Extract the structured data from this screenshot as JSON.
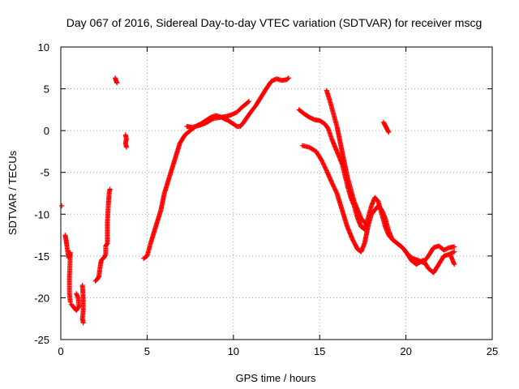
{
  "chart_data": {
    "type": "scatter",
    "title": "Day 067 of 2016, Sidereal Day-to-day VTEC variation (SDTVAR) for receiver mscg",
    "xlabel": "GPS time / hours",
    "ylabel": "SDTVAR / TECUs",
    "xlim": [
      0,
      25
    ],
    "ylim": [
      -25,
      10
    ],
    "xticks": [
      0,
      5,
      10,
      15,
      20,
      25
    ],
    "yticks": [
      -25,
      -20,
      -15,
      -10,
      -5,
      0,
      5,
      10
    ],
    "grid": true,
    "marker": "+",
    "series": [
      {
        "name": "SDTVAR",
        "color": "#ff0000",
        "segments": [
          [
            [
              0.05,
              -9.0
            ]
          ],
          [
            [
              0.25,
              -12.5
            ],
            [
              0.3,
              -13.0
            ],
            [
              0.35,
              -13.8
            ],
            [
              0.4,
              -14.5
            ],
            [
              0.45,
              -15.2
            ],
            [
              0.5,
              -15.0
            ],
            [
              0.55,
              -14.6
            ],
            [
              0.5,
              -17.5
            ],
            [
              0.5,
              -19.5
            ],
            [
              0.55,
              -20.5
            ]
          ],
          [
            [
              0.6,
              -20.8
            ],
            [
              0.7,
              -21.0
            ],
            [
              0.8,
              -21.3
            ],
            [
              0.9,
              -21.5
            ],
            [
              1.0,
              -21.2
            ],
            [
              1.05,
              -21.0
            ],
            [
              1.0,
              -20.0
            ],
            [
              0.9,
              -19.5
            ]
          ],
          [
            [
              1.25,
              -18.5
            ],
            [
              1.3,
              -20.0
            ],
            [
              1.3,
              -21.5
            ],
            [
              1.25,
              -22.5
            ],
            [
              1.3,
              -23.0
            ]
          ],
          [
            [
              2.0,
              -18.0
            ],
            [
              2.1,
              -17.8
            ],
            [
              2.2,
              -17.5
            ],
            [
              2.3,
              -16.0
            ],
            [
              2.35,
              -15.5
            ],
            [
              2.5,
              -15.2
            ],
            [
              2.6,
              -14.8
            ],
            [
              2.6,
              -13.8
            ],
            [
              2.7,
              -13.5
            ],
            [
              2.7,
              -11.0
            ],
            [
              2.75,
              -9.0
            ],
            [
              2.8,
              -7.5
            ],
            [
              2.85,
              -7.0
            ]
          ],
          [
            [
              3.15,
              6.3
            ],
            [
              3.2,
              6.0
            ],
            [
              3.25,
              5.7
            ]
          ],
          [
            [
              3.75,
              -0.5
            ],
            [
              3.8,
              -1.0
            ],
            [
              3.75,
              -1.5
            ],
            [
              3.8,
              -2.0
            ]
          ],
          [
            [
              4.8,
              -15.3
            ],
            [
              5.0,
              -15.0
            ],
            [
              5.2,
              -13.5
            ],
            [
              5.5,
              -11.5
            ],
            [
              5.8,
              -9.5
            ],
            [
              6.0,
              -7.5
            ],
            [
              6.3,
              -5.5
            ],
            [
              6.6,
              -3.5
            ],
            [
              6.9,
              -1.5
            ],
            [
              7.2,
              -0.5
            ],
            [
              7.5,
              0.0
            ],
            [
              7.8,
              0.5
            ],
            [
              8.1,
              0.8
            ],
            [
              8.4,
              1.2
            ],
            [
              8.7,
              1.6
            ],
            [
              9.0,
              1.8
            ],
            [
              9.3,
              1.6
            ],
            [
              9.7,
              1.2
            ],
            [
              10.0,
              0.8
            ],
            [
              10.2,
              0.5
            ],
            [
              10.4,
              0.5
            ],
            [
              10.6,
              1.0
            ],
            [
              10.8,
              1.6
            ],
            [
              11.0,
              2.2
            ],
            [
              11.3,
              3.0
            ],
            [
              11.6,
              4.0
            ],
            [
              11.9,
              5.0
            ],
            [
              12.2,
              5.9
            ],
            [
              12.5,
              6.2
            ],
            [
              12.8,
              6.0
            ],
            [
              13.1,
              6.1
            ],
            [
              13.2,
              6.3
            ]
          ],
          [
            [
              7.3,
              0.5
            ],
            [
              7.6,
              0.4
            ],
            [
              8.0,
              0.6
            ],
            [
              8.4,
              0.9
            ],
            [
              8.8,
              1.4
            ],
            [
              9.0,
              1.5
            ],
            [
              9.3,
              1.6
            ],
            [
              9.6,
              1.7
            ],
            [
              9.9,
              1.9
            ],
            [
              10.2,
              2.2
            ],
            [
              10.5,
              2.8
            ],
            [
              10.8,
              3.3
            ],
            [
              10.9,
              3.5
            ]
          ],
          [
            [
              13.8,
              2.5
            ],
            [
              14.1,
              2.0
            ],
            [
              14.4,
              1.6
            ],
            [
              14.7,
              1.3
            ],
            [
              15.0,
              1.2
            ],
            [
              15.3,
              0.8
            ],
            [
              15.5,
              0.2
            ],
            [
              15.7,
              -1.0
            ],
            [
              16.0,
              -2.5
            ],
            [
              16.3,
              -4.0
            ],
            [
              16.6,
              -6.5
            ],
            [
              16.8,
              -8.0
            ],
            [
              17.0,
              -9.0
            ],
            [
              17.2,
              -10.5
            ],
            [
              17.4,
              -11.5
            ],
            [
              17.6,
              -11.8
            ],
            [
              17.8,
              -10.5
            ],
            [
              18.0,
              -9.0
            ],
            [
              18.2,
              -8.0
            ],
            [
              18.4,
              -8.5
            ],
            [
              18.6,
              -10.0
            ],
            [
              18.8,
              -11.5
            ],
            [
              19.0,
              -12.5
            ],
            [
              19.2,
              -13.0
            ],
            [
              19.5,
              -13.5
            ],
            [
              19.8,
              -14.0
            ],
            [
              20.0,
              -14.5
            ],
            [
              20.3,
              -15.5
            ],
            [
              20.6,
              -16.0
            ],
            [
              21.0,
              -15.5
            ],
            [
              21.3,
              -16.5
            ],
            [
              21.6,
              -17.0
            ],
            [
              21.9,
              -16.0
            ],
            [
              22.2,
              -15.0
            ],
            [
              22.5,
              -14.8
            ],
            [
              22.8,
              -14.5
            ]
          ],
          [
            [
              14.0,
              -1.8
            ],
            [
              14.4,
              -2.0
            ],
            [
              14.8,
              -2.5
            ],
            [
              15.1,
              -3.5
            ],
            [
              15.4,
              -4.8
            ],
            [
              15.7,
              -6.2
            ],
            [
              16.0,
              -7.5
            ],
            [
              16.3,
              -9.5
            ],
            [
              16.6,
              -11.5
            ],
            [
              16.9,
              -13.0
            ],
            [
              17.2,
              -14.2
            ],
            [
              17.4,
              -14.5
            ],
            [
              17.6,
              -13.5
            ],
            [
              17.8,
              -11.5
            ],
            [
              18.0,
              -10.0
            ],
            [
              18.2,
              -9.5
            ],
            [
              18.4,
              -9.0
            ],
            [
              18.6,
              -9.5
            ],
            [
              18.8,
              -10.5
            ],
            [
              19.0,
              -12.0
            ],
            [
              19.2,
              -13.0
            ],
            [
              19.5,
              -13.5
            ],
            [
              19.8,
              -14.0
            ],
            [
              20.1,
              -14.8
            ],
            [
              20.4,
              -15.3
            ],
            [
              20.7,
              -15.5
            ],
            [
              21.0,
              -15.8
            ],
            [
              21.3,
              -15.0
            ],
            [
              21.6,
              -14.0
            ],
            [
              21.9,
              -13.8
            ],
            [
              22.2,
              -14.3
            ],
            [
              22.5,
              -14.0
            ],
            [
              22.8,
              -13.9
            ]
          ],
          [
            [
              15.4,
              4.8
            ],
            [
              15.6,
              3.5
            ],
            [
              15.8,
              2.0
            ],
            [
              16.0,
              0.5
            ],
            [
              16.2,
              -1.5
            ],
            [
              16.4,
              -3.5
            ],
            [
              16.6,
              -5.5
            ],
            [
              16.8,
              -7.0
            ],
            [
              17.0,
              -8.5
            ],
            [
              17.2,
              -9.5
            ],
            [
              17.4,
              -10.5
            ],
            [
              17.6,
              -11.0
            ]
          ],
          [
            [
              22.6,
              -15.0
            ],
            [
              22.7,
              -15.5
            ],
            [
              22.8,
              -16.0
            ]
          ],
          [
            [
              18.7,
              1.0
            ],
            [
              18.8,
              0.6
            ],
            [
              18.9,
              0.2
            ],
            [
              19.0,
              -0.2
            ]
          ]
        ]
      }
    ]
  }
}
